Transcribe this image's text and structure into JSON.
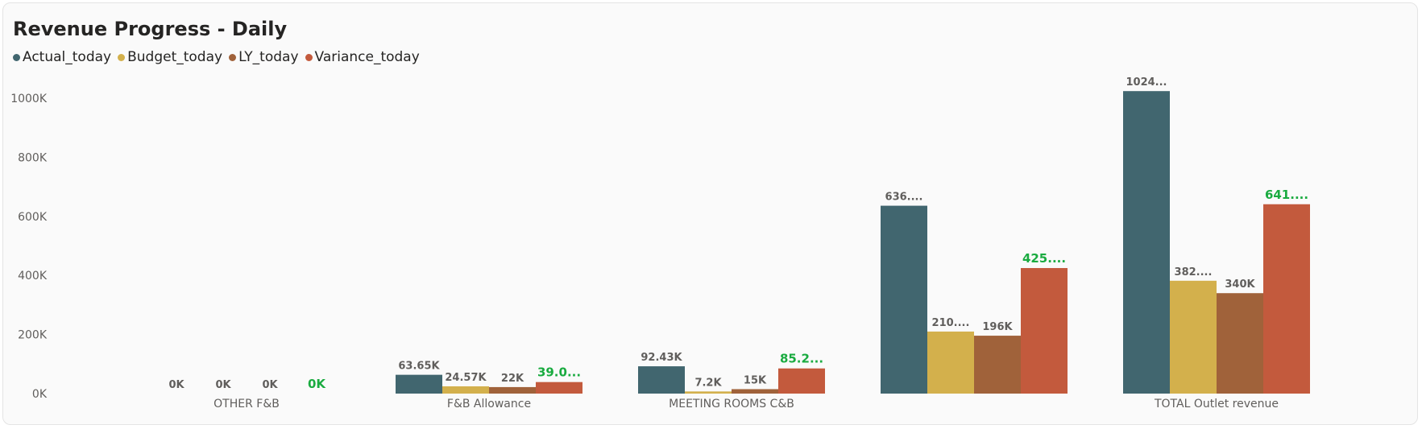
{
  "title": "Revenue Progress - Daily",
  "colors": {
    "Actual_today": "#41666f",
    "Budget_today": "#d3b04c",
    "LY_today": "#a0623a",
    "Variance_today": "#c35a3d",
    "variance_label": "#1aab40"
  },
  "chart_data": {
    "type": "bar",
    "title": "Revenue Progress - Daily",
    "categories": [
      "OTHER F&B",
      "F&B Allowance",
      "MEETING ROOMS C&B",
      "",
      "TOTAL Outlet revenue"
    ],
    "series": [
      {
        "name": "Actual_today",
        "values": [
          0,
          63650,
          92430,
          636000,
          1024000
        ],
        "labels": [
          "0K",
          "63.65K",
          "92.43K",
          "636....",
          "1024..."
        ]
      },
      {
        "name": "Budget_today",
        "values": [
          0,
          24570,
          7200,
          210000,
          382000
        ],
        "labels": [
          "0K",
          "24.57K",
          "7.2K",
          "210....",
          "382...."
        ]
      },
      {
        "name": "LY_today",
        "values": [
          0,
          22000,
          15000,
          196000,
          340000
        ],
        "labels": [
          "0K",
          "22K",
          "15K",
          "196K",
          "340K"
        ]
      },
      {
        "name": "Variance_today",
        "values": [
          0,
          39000,
          85200,
          425000,
          641000
        ],
        "labels": [
          "0K",
          "39.0...",
          "85.2...",
          "425....",
          "641...."
        ]
      }
    ],
    "yticks": [
      {
        "value": 0,
        "label": "0K"
      },
      {
        "value": 200000,
        "label": "200K"
      },
      {
        "value": 400000,
        "label": "400K"
      },
      {
        "value": 600000,
        "label": "600K"
      },
      {
        "value": 800000,
        "label": "800K"
      },
      {
        "value": 1000000,
        "label": "1000K"
      }
    ],
    "ylim": [
      0,
      1000000
    ],
    "legend_position": "top-left",
    "grid": false,
    "xlabel": "",
    "ylabel": ""
  }
}
